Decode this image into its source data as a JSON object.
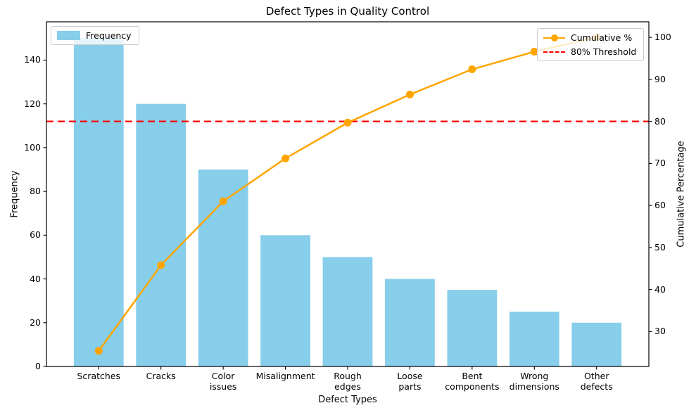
{
  "chart_data": {
    "type": "combo_bar_line_pareto",
    "title": "Defect Types in Quality Control",
    "xlabel": "Defect Types",
    "ylabel_left": "Frequency",
    "ylabel_right": "Cumulative Percentage",
    "categories": [
      "Scratches",
      "Cracks",
      "Color\nissues",
      "Misalignment",
      "Rough\nedges",
      "Loose\nparts",
      "Bent\ncomponents",
      "Wrong\ndimensions",
      "Other\ndefects"
    ],
    "series": [
      {
        "name": "Frequency",
        "type": "bar",
        "color": "#87CEEB",
        "values": [
          150,
          120,
          90,
          60,
          50,
          40,
          35,
          25,
          20
        ]
      },
      {
        "name": "Cumulative %",
        "type": "line",
        "color": "#FFA500",
        "marker": "circle",
        "values": [
          25.4,
          45.8,
          61.0,
          71.2,
          79.7,
          86.4,
          92.4,
          96.6,
          100.0
        ]
      },
      {
        "name": "80% Threshold",
        "type": "hline",
        "color": "#FF0000",
        "style": "dashed",
        "value": 80
      }
    ],
    "left_axis": {
      "ticks": [
        0,
        20,
        40,
        60,
        80,
        100,
        120,
        140
      ],
      "lim": [
        0,
        157.5
      ]
    },
    "right_axis": {
      "ticks": [
        30,
        40,
        50,
        60,
        70,
        80,
        90,
        100
      ],
      "lim": [
        21.7,
        103.7
      ]
    },
    "legend_left": {
      "entries": [
        "Frequency"
      ],
      "position": "upper left"
    },
    "legend_right": {
      "entries": [
        "Cumulative %",
        "80% Threshold"
      ],
      "position": "upper right"
    },
    "grid": "off",
    "bar_color": "#87CEEB",
    "line_color": "#FFA500",
    "threshold_color": "#FF0000"
  }
}
